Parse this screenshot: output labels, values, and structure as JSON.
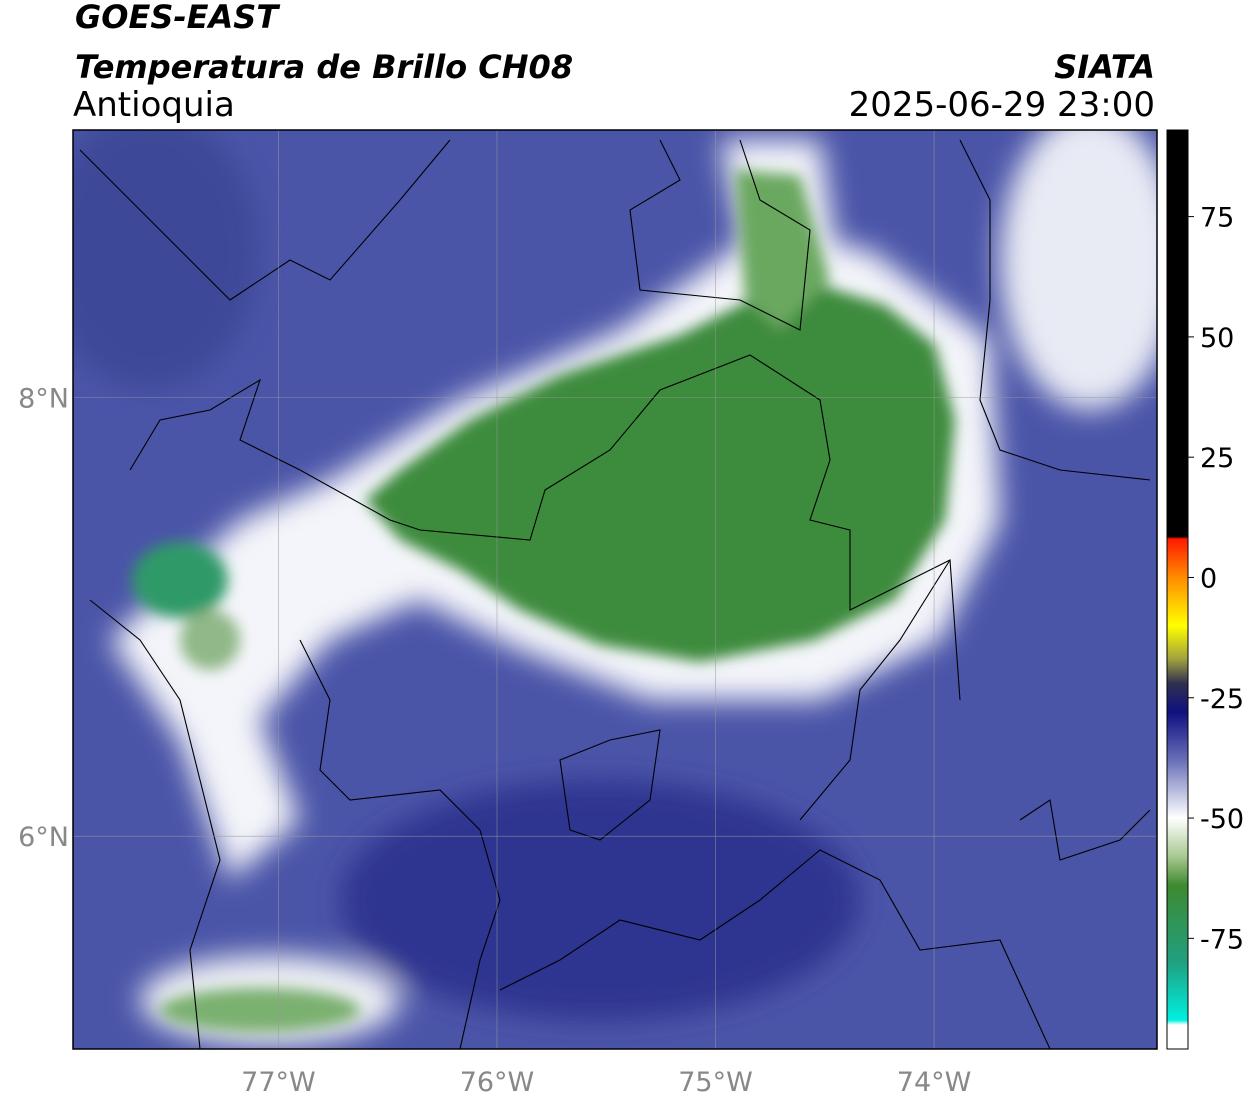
{
  "header": {
    "title": "GOES-EAST",
    "subtitle": "Temperatura de Brillo CH08",
    "region": "Antioquia",
    "source": "SIATA",
    "timestamp": "2025-06-29 23:00"
  },
  "map": {
    "lonlim": [
      -77.94,
      -72.98
    ],
    "latlim": [
      5.03,
      9.22
    ],
    "lon_ticks": [
      {
        "value": -77,
        "label": "77°W"
      },
      {
        "value": -76,
        "label": "76°W"
      },
      {
        "value": -75,
        "label": "75°W"
      },
      {
        "value": -74,
        "label": "74°W"
      }
    ],
    "lat_ticks": [
      {
        "value": 8,
        "label": "8°N"
      },
      {
        "value": 6,
        "label": "6°N"
      }
    ],
    "grid": true
  },
  "colorbar": {
    "lim": [
      -98,
      93
    ],
    "ticks": [
      75,
      50,
      25,
      0,
      -25,
      -50,
      -75
    ],
    "stops": [
      {
        "value": 93,
        "color": "#000000"
      },
      {
        "value": 8.5,
        "color": "#000000"
      },
      {
        "value": 8,
        "color": "#ff1a00"
      },
      {
        "value": 0,
        "color": "#ff8c00"
      },
      {
        "value": -10,
        "color": "#ffff00"
      },
      {
        "value": -17,
        "color": "#a0a040"
      },
      {
        "value": -22,
        "color": "#303050"
      },
      {
        "value": -28,
        "color": "#101080"
      },
      {
        "value": -38,
        "color": "#6870b8"
      },
      {
        "value": -50,
        "color": "#ffffff"
      },
      {
        "value": -58,
        "color": "#a8c890"
      },
      {
        "value": -64,
        "color": "#3e8a30"
      },
      {
        "value": -80,
        "color": "#20a080"
      },
      {
        "value": -92,
        "color": "#00f0e0"
      },
      {
        "value": -93,
        "color": "#ffffff"
      },
      {
        "value": -98,
        "color": "#ffffff"
      }
    ]
  }
}
